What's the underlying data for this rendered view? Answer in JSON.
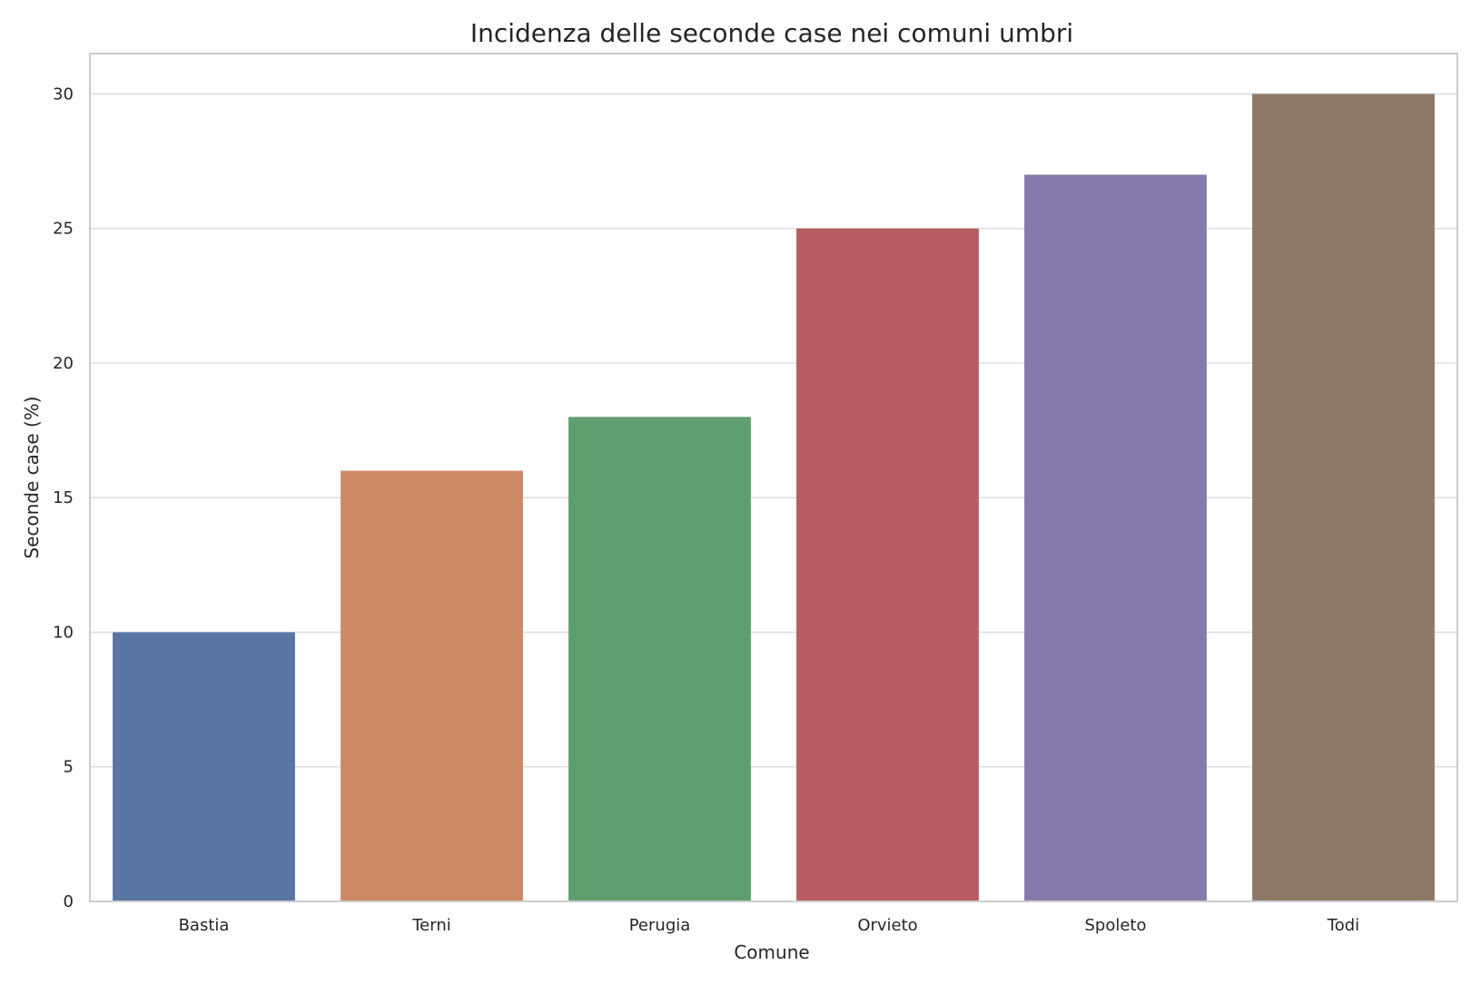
{
  "chart_data": {
    "type": "bar",
    "title": "Incidenza delle seconde case nei comuni umbri",
    "xlabel": "Comune",
    "ylabel": "Seconde case (%)",
    "categories": [
      "Bastia",
      "Terni",
      "Perugia",
      "Orvieto",
      "Spoleto",
      "Todi"
    ],
    "values": [
      10,
      16,
      18,
      25,
      27,
      30
    ],
    "colors": [
      "#5975a4",
      "#cc8963",
      "#5f9e6e",
      "#b55d60",
      "#857aab",
      "#8d7866"
    ],
    "yticks": [
      0,
      5,
      10,
      15,
      20,
      25,
      30
    ],
    "ylim": [
      0,
      31.5
    ],
    "grid": true,
    "gridColor": "#dddddd",
    "frameColor": "#cccccc",
    "legend": "none"
  }
}
